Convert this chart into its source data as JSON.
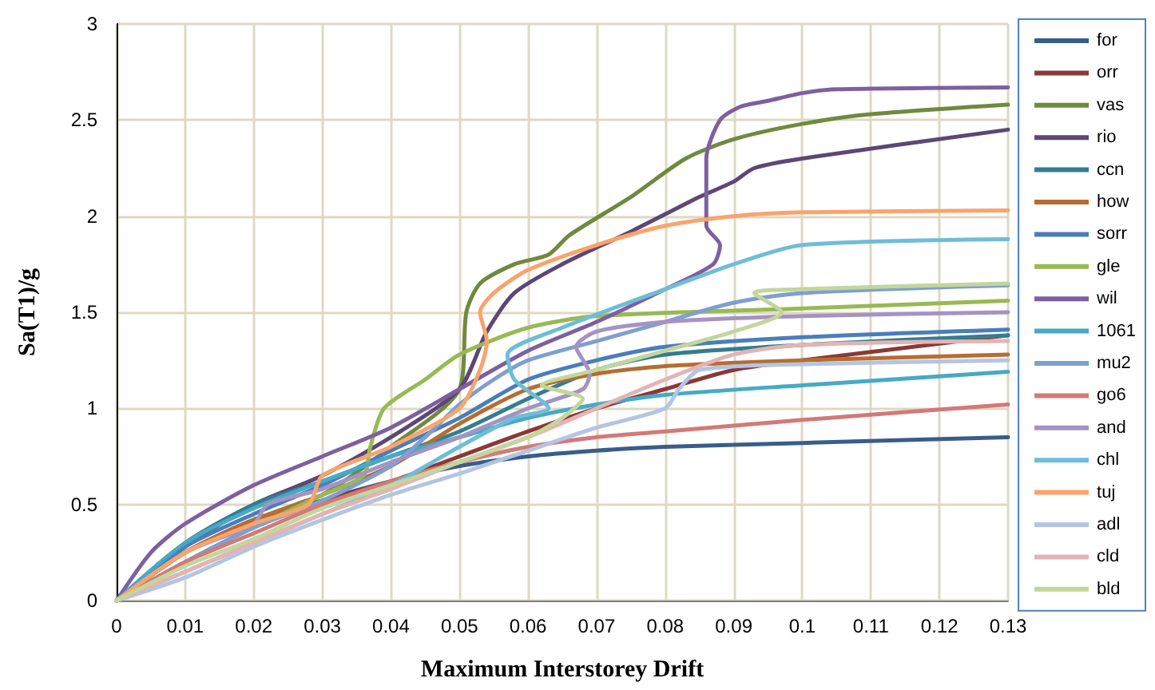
{
  "chart_data": {
    "type": "line",
    "xlabel": "Maximum Interstorey Drift",
    "ylabel": "Sa(T1)/g",
    "xlim": [
      0,
      0.13
    ],
    "xticks": [
      0,
      0.01,
      0.02,
      0.03,
      0.04,
      0.05,
      0.06,
      0.07,
      0.08,
      0.09,
      0.1,
      0.11,
      0.12,
      0.13
    ],
    "ylim": [
      0,
      3
    ],
    "yticks": [
      0,
      0.5,
      1,
      1.5,
      2,
      2.5,
      3
    ],
    "grid": true,
    "legend": "right",
    "marker": "none",
    "line_style": "solid",
    "series": [
      {
        "name": "for",
        "color": "#385d8a",
        "x": [
          0,
          0.01,
          0.02,
          0.03,
          0.04,
          0.05,
          0.06,
          0.07,
          0.08,
          0.1,
          0.13
        ],
        "values": [
          0,
          0.2,
          0.38,
          0.52,
          0.62,
          0.7,
          0.75,
          0.78,
          0.8,
          0.82,
          0.85
        ]
      },
      {
        "name": "orr",
        "color": "#8c3836",
        "x": [
          0,
          0.01,
          0.02,
          0.03,
          0.04,
          0.05,
          0.06,
          0.07,
          0.08,
          0.09,
          0.1,
          0.13
        ],
        "values": [
          0,
          0.25,
          0.42,
          0.52,
          0.62,
          0.75,
          0.88,
          1.0,
          1.1,
          1.2,
          1.25,
          1.38
        ]
      },
      {
        "name": "vas",
        "color": "#71893f",
        "x": [
          0,
          0.01,
          0.02,
          0.03,
          0.04,
          0.05,
          0.051,
          0.053,
          0.058,
          0.063,
          0.066,
          0.075,
          0.083,
          0.09,
          0.1,
          0.11,
          0.13
        ],
        "values": [
          0,
          0.25,
          0.4,
          0.55,
          0.8,
          1.1,
          1.5,
          1.65,
          1.75,
          1.8,
          1.9,
          2.1,
          2.3,
          2.4,
          2.48,
          2.53,
          2.58
        ]
      },
      {
        "name": "rio",
        "color": "#5c4776",
        "x": [
          0,
          0.01,
          0.02,
          0.03,
          0.04,
          0.05,
          0.054,
          0.058,
          0.065,
          0.075,
          0.085,
          0.09,
          0.093,
          0.1,
          0.13
        ],
        "values": [
          0,
          0.28,
          0.5,
          0.65,
          0.85,
          1.1,
          1.4,
          1.6,
          1.75,
          1.92,
          2.1,
          2.18,
          2.25,
          2.3,
          2.45
        ]
      },
      {
        "name": "ccn",
        "color": "#357d91",
        "x": [
          0,
          0.01,
          0.02,
          0.03,
          0.04,
          0.05,
          0.06,
          0.07,
          0.08,
          0.1,
          0.13
        ],
        "values": [
          0,
          0.3,
          0.5,
          0.62,
          0.75,
          0.88,
          1.05,
          1.2,
          1.28,
          1.33,
          1.38
        ]
      },
      {
        "name": "how",
        "color": "#b66d31",
        "x": [
          0,
          0.01,
          0.02,
          0.03,
          0.04,
          0.05,
          0.06,
          0.07,
          0.08,
          0.1,
          0.13
        ],
        "values": [
          0,
          0.25,
          0.42,
          0.55,
          0.7,
          0.92,
          1.1,
          1.18,
          1.22,
          1.25,
          1.28
        ]
      },
      {
        "name": "sorr",
        "color": "#4a7ebb",
        "x": [
          0,
          0.01,
          0.02,
          0.03,
          0.04,
          0.05,
          0.06,
          0.07,
          0.08,
          0.1,
          0.13
        ],
        "values": [
          0,
          0.28,
          0.45,
          0.6,
          0.78,
          0.95,
          1.15,
          1.25,
          1.32,
          1.37,
          1.41
        ]
      },
      {
        "name": "gle",
        "color": "#98b954",
        "x": [
          0,
          0.01,
          0.02,
          0.03,
          0.036,
          0.037,
          0.039,
          0.045,
          0.05,
          0.06,
          0.07,
          0.1,
          0.13
        ],
        "values": [
          0,
          0.2,
          0.38,
          0.55,
          0.65,
          0.8,
          1.0,
          1.15,
          1.28,
          1.42,
          1.48,
          1.52,
          1.56
        ]
      },
      {
        "name": "wil",
        "color": "#7d60a0",
        "x": [
          0,
          0.005,
          0.01,
          0.02,
          0.03,
          0.04,
          0.05,
          0.06,
          0.07,
          0.08,
          0.087,
          0.088,
          0.086,
          0.086,
          0.088,
          0.091,
          0.095,
          0.1,
          0.105,
          0.13
        ],
        "values": [
          0,
          0.25,
          0.4,
          0.6,
          0.75,
          0.9,
          1.1,
          1.3,
          1.45,
          1.62,
          1.75,
          1.85,
          1.95,
          2.3,
          2.5,
          2.57,
          2.6,
          2.64,
          2.66,
          2.67
        ]
      },
      {
        "name": "1061",
        "color": "#46aac5",
        "x": [
          0,
          0.01,
          0.02,
          0.03,
          0.04,
          0.05,
          0.06,
          0.07,
          0.08,
          0.1,
          0.13
        ],
        "values": [
          0,
          0.3,
          0.48,
          0.62,
          0.75,
          0.85,
          0.95,
          1.02,
          1.07,
          1.12,
          1.19
        ]
      },
      {
        "name": "mu2",
        "color": "#7f9fd0",
        "x": [
          0,
          0.01,
          0.02,
          0.03,
          0.04,
          0.045,
          0.05,
          0.055,
          0.06,
          0.07,
          0.08,
          0.09,
          0.1,
          0.13
        ],
        "values": [
          0,
          0.2,
          0.38,
          0.52,
          0.7,
          0.85,
          1.02,
          1.15,
          1.25,
          1.35,
          1.45,
          1.55,
          1.6,
          1.64
        ]
      },
      {
        "name": "go6",
        "color": "#d27a78",
        "x": [
          0,
          0.01,
          0.02,
          0.03,
          0.04,
          0.05,
          0.06,
          0.07,
          0.08,
          0.1,
          0.13
        ],
        "values": [
          0,
          0.2,
          0.35,
          0.5,
          0.62,
          0.72,
          0.8,
          0.85,
          0.88,
          0.94,
          1.02
        ]
      },
      {
        "name": "and",
        "color": "#a493c3",
        "x": [
          0,
          0.01,
          0.02,
          0.022,
          0.03,
          0.04,
          0.05,
          0.06,
          0.068,
          0.069,
          0.067,
          0.07,
          0.08,
          0.1,
          0.13
        ],
        "values": [
          0,
          0.25,
          0.4,
          0.5,
          0.58,
          0.72,
          0.85,
          1.0,
          1.1,
          1.18,
          1.32,
          1.4,
          1.45,
          1.48,
          1.5
        ]
      },
      {
        "name": "chl",
        "color": "#6fbdd7",
        "x": [
          0,
          0.01,
          0.02,
          0.03,
          0.04,
          0.05,
          0.058,
          0.063,
          0.058,
          0.057,
          0.065,
          0.08,
          0.09,
          0.1,
          0.13
        ],
        "values": [
          0,
          0.15,
          0.3,
          0.45,
          0.6,
          0.8,
          0.95,
          1.0,
          1.15,
          1.28,
          1.42,
          1.62,
          1.75,
          1.85,
          1.88
        ]
      },
      {
        "name": "tuj",
        "color": "#f9a46c",
        "x": [
          0,
          0.01,
          0.02,
          0.028,
          0.03,
          0.04,
          0.05,
          0.053,
          0.054,
          0.053,
          0.055,
          0.06,
          0.07,
          0.08,
          0.09,
          0.1,
          0.13
        ],
        "values": [
          0,
          0.25,
          0.4,
          0.5,
          0.65,
          0.8,
          1.0,
          1.2,
          1.35,
          1.5,
          1.6,
          1.72,
          1.85,
          1.95,
          2.0,
          2.02,
          2.03
        ]
      },
      {
        "name": "adl",
        "color": "#b3c5e3",
        "x": [
          0,
          0.01,
          0.02,
          0.03,
          0.04,
          0.05,
          0.06,
          0.07,
          0.08,
          0.082,
          0.085,
          0.1,
          0.13
        ],
        "values": [
          0,
          0.12,
          0.28,
          0.42,
          0.55,
          0.66,
          0.78,
          0.9,
          1.0,
          1.1,
          1.2,
          1.23,
          1.25
        ]
      },
      {
        "name": "cld",
        "color": "#e3b4b3",
        "x": [
          0,
          0.01,
          0.02,
          0.03,
          0.04,
          0.05,
          0.06,
          0.07,
          0.08,
          0.09,
          0.1,
          0.13
        ],
        "values": [
          0,
          0.15,
          0.3,
          0.45,
          0.58,
          0.72,
          0.85,
          1.0,
          1.15,
          1.28,
          1.33,
          1.35
        ]
      },
      {
        "name": "bld",
        "color": "#c3d69b",
        "x": [
          0,
          0.01,
          0.02,
          0.03,
          0.04,
          0.05,
          0.06,
          0.065,
          0.068,
          0.062,
          0.07,
          0.08,
          0.09,
          0.097,
          0.093,
          0.1,
          0.13
        ],
        "values": [
          0,
          0.18,
          0.32,
          0.48,
          0.6,
          0.72,
          0.85,
          0.95,
          1.05,
          1.12,
          1.2,
          1.3,
          1.4,
          1.5,
          1.6,
          1.62,
          1.65
        ]
      }
    ]
  }
}
